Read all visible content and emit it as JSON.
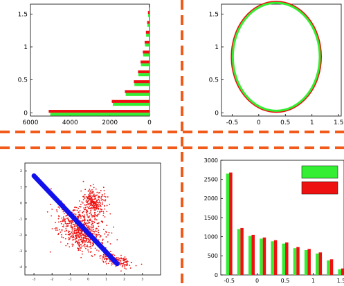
{
  "colors": {
    "green": "#33ee33",
    "red": "#ee1111",
    "blue": "#1111ee",
    "divider": "#f25a1a",
    "axis": "#000000"
  },
  "chart_data": [
    {
      "id": "top-left",
      "type": "bar",
      "orientation": "horizontal",
      "xlim": [
        6000,
        0
      ],
      "ylim": [
        -0.05,
        1.65
      ],
      "xticks": [
        "6000",
        "4000",
        "2000",
        "0"
      ],
      "xtick_values": [
        6000,
        4000,
        2000,
        0
      ],
      "yticks": [
        "0",
        "0.5",
        "1",
        "1.5"
      ],
      "ytick_values": [
        0,
        0.5,
        1,
        1.5
      ],
      "y": [
        0.0,
        0.15,
        0.3,
        0.45,
        0.6,
        0.75,
        0.9,
        1.05,
        1.2,
        1.35,
        1.5,
        1.6
      ],
      "series": [
        {
          "color": "green",
          "values": [
            5000,
            1850,
            1200,
            760,
            560,
            430,
            320,
            230,
            170,
            110,
            70,
            30
          ]
        },
        {
          "color": "red",
          "values": [
            5080,
            1900,
            1240,
            790,
            580,
            450,
            335,
            245,
            180,
            120,
            78,
            35
          ]
        }
      ]
    },
    {
      "id": "top-right",
      "type": "line",
      "xlim": [
        -0.7,
        1.55
      ],
      "ylim": [
        -0.05,
        1.65
      ],
      "xticks": [
        "-0.5",
        "0",
        "0.5",
        "1",
        "1.5"
      ],
      "xtick_values": [
        -0.5,
        0,
        0.5,
        1,
        1.5
      ],
      "yticks": [
        "0",
        "0.5",
        "1",
        "1.5"
      ],
      "ytick_values": [
        0,
        0.5,
        1,
        1.5
      ],
      "circle": {
        "cx": 0.33,
        "cy": 0.85,
        "r": 0.83
      }
    },
    {
      "id": "bottom-left",
      "type": "scatter",
      "xlim": [
        -3.5,
        4
      ],
      "ylim": [
        -4.5,
        2.5
      ],
      "xticks": [
        "-3",
        "-2",
        "-1",
        "0",
        "1",
        "2",
        "3"
      ],
      "xtick_values": [
        -3,
        -2,
        -1,
        0,
        1,
        2,
        3
      ],
      "yticks": [
        "2",
        "1",
        "0",
        "-1",
        "-2",
        "-3",
        "-4"
      ],
      "ytick_values": [
        2,
        1,
        0,
        -1,
        -2,
        -3,
        -4
      ],
      "line": {
        "color": "blue",
        "from": [
          -3.0,
          1.7
        ],
        "to": [
          1.6,
          -3.8
        ]
      },
      "clusters": [
        {
          "color": "red",
          "cx": -0.4,
          "cy": -1.7,
          "sx": 1.3,
          "sy": 0.9,
          "rot": -0.8,
          "n": 650
        },
        {
          "color": "red",
          "cx": 0.3,
          "cy": 0.0,
          "sx": 0.55,
          "sy": 0.8,
          "rot": 0.2,
          "n": 280
        },
        {
          "color": "red",
          "cx": 1.6,
          "cy": -3.6,
          "sx": 0.8,
          "sy": 0.3,
          "rot": -0.3,
          "n": 160
        }
      ]
    },
    {
      "id": "bottom-right",
      "type": "bar",
      "xlim": [
        -0.65,
        1.55
      ],
      "ylim": [
        0,
        3000
      ],
      "xticks": [
        "-0.5",
        "0",
        "0.5",
        "1",
        "1.5"
      ],
      "xtick_values": [
        -0.5,
        0,
        0.5,
        1,
        1.5
      ],
      "yticks": [
        "0",
        "500",
        "1000",
        "1500",
        "2000",
        "2500",
        "3000"
      ],
      "ytick_values": [
        0,
        500,
        1000,
        1500,
        2000,
        2500,
        3000
      ],
      "x": [
        -0.5,
        -0.3,
        -0.1,
        0.1,
        0.3,
        0.5,
        0.7,
        0.9,
        1.1,
        1.3,
        1.5
      ],
      "series": [
        {
          "color": "green",
          "values": [
            2650,
            1200,
            1020,
            950,
            880,
            820,
            700,
            650,
            560,
            380,
            150
          ]
        },
        {
          "color": "red",
          "values": [
            2680,
            1230,
            1050,
            980,
            910,
            850,
            730,
            680,
            590,
            410,
            170
          ]
        }
      ],
      "legend": {
        "position": "top-right",
        "swatches": [
          "green",
          "red"
        ]
      }
    }
  ]
}
